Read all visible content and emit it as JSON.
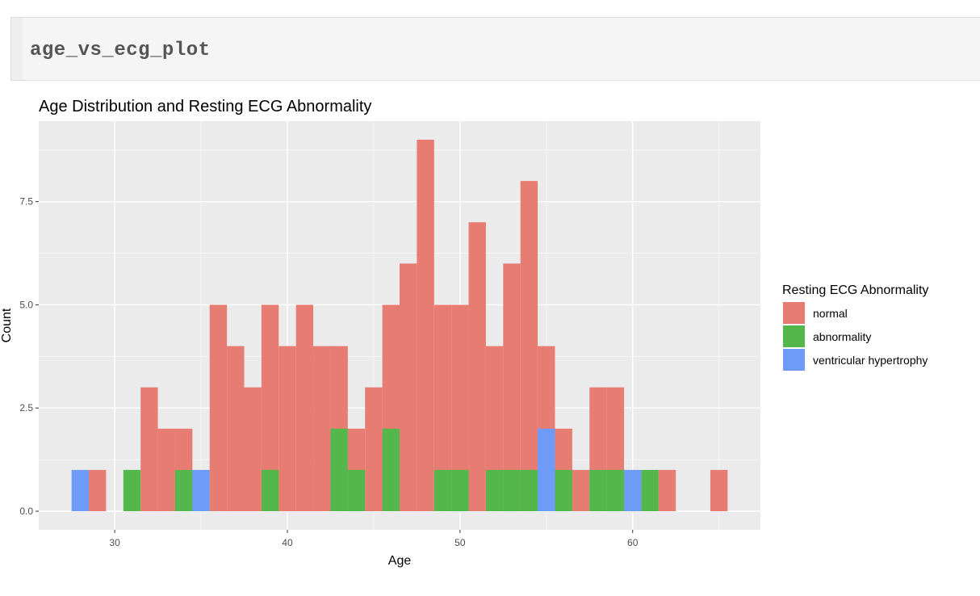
{
  "cell": {
    "code": "age_vs_ecg_plot"
  },
  "chart_data": {
    "type": "bar",
    "stacking": "overlay",
    "title": "Age Distribution and Resting ECG Abnormality",
    "xlabel": "Age",
    "ylabel": "Count",
    "xlim": [
      25.6,
      67.4
    ],
    "ylim": [
      -0.45,
      9.45
    ],
    "xticks": [
      30,
      40,
      50,
      60
    ],
    "yticks": [
      0,
      2.5,
      5,
      7.5
    ],
    "ytick_labels": [
      "0.0",
      "2.5",
      "5.0",
      "7.5"
    ],
    "bin_width": 1,
    "grid": true,
    "legend": {
      "title": "Resting ECG Abnormality",
      "placement": "right"
    },
    "series": [
      {
        "name": "normal",
        "color": "#E77D72",
        "x": [
          29,
          32,
          33,
          34,
          36,
          37,
          38,
          39,
          40,
          41,
          42,
          43,
          44,
          45,
          46,
          47,
          48,
          49,
          50,
          51,
          52,
          53,
          54,
          55,
          56,
          57,
          58,
          59,
          62,
          65
        ],
        "values": [
          1,
          3,
          2,
          2,
          5,
          4,
          3,
          5,
          4,
          5,
          4,
          4,
          2,
          3,
          5,
          6,
          9,
          5,
          5,
          7,
          4,
          6,
          8,
          4,
          2,
          1,
          3,
          3,
          1,
          1
        ]
      },
      {
        "name": "abnormality",
        "color": "#53B74C",
        "x": [
          31,
          34,
          39,
          43,
          44,
          46,
          49,
          50,
          52,
          53,
          54,
          56,
          58,
          59,
          61
        ],
        "values": [
          1,
          1,
          1,
          2,
          1,
          2,
          1,
          1,
          1,
          1,
          1,
          1,
          1,
          1,
          1
        ]
      },
      {
        "name": "ventricular hypertrophy",
        "color": "#6F9BF8",
        "x": [
          28,
          35,
          55,
          60
        ],
        "values": [
          1,
          1,
          2,
          1
        ]
      }
    ]
  }
}
